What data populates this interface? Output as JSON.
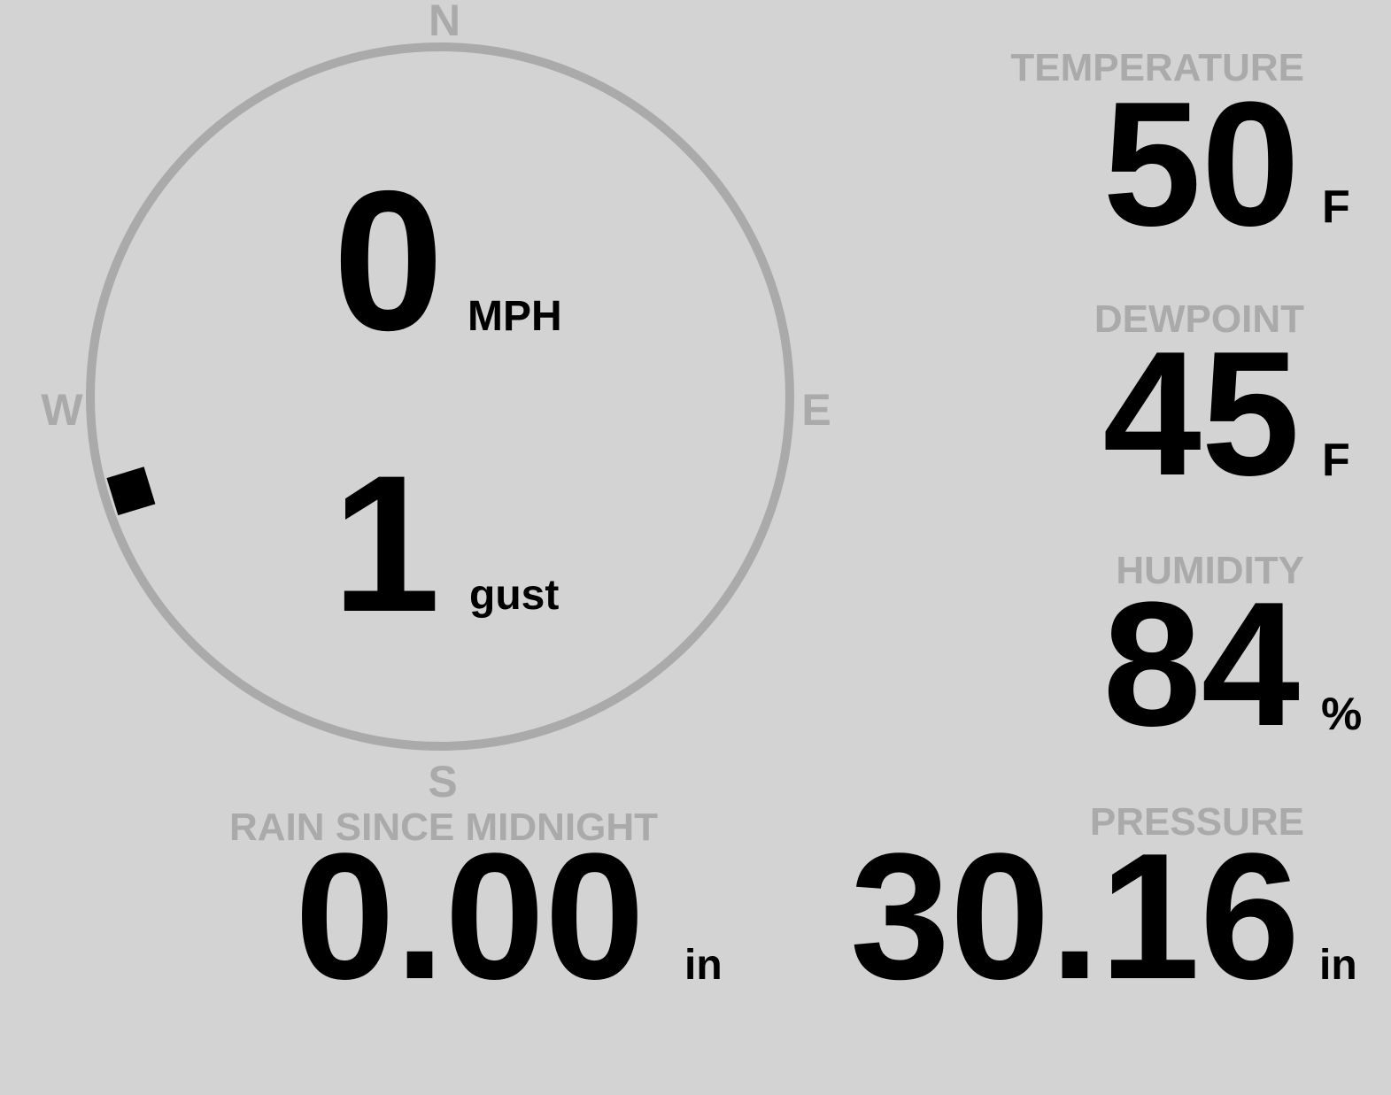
{
  "colors": {
    "background": "#d3d3d3",
    "label": "#aaaaaa",
    "value": "#000000",
    "compass_ring": "#aaaaaa",
    "wind_marker": "#000000"
  },
  "compass": {
    "n": "N",
    "e": "E",
    "s": "S",
    "w": "W",
    "wind_direction_deg": 253
  },
  "wind": {
    "speed": "0",
    "speed_unit": "MPH",
    "gust": "1",
    "gust_unit": "gust"
  },
  "temperature": {
    "label": "TEMPERATURE",
    "value": "50",
    "unit": "F"
  },
  "dewpoint": {
    "label": "DEWPOINT",
    "value": "45",
    "unit": "F"
  },
  "humidity": {
    "label": "HUMIDITY",
    "value": "84",
    "unit": "%"
  },
  "rain": {
    "label": "RAIN SINCE MIDNIGHT",
    "value": "0.00",
    "unit": "in"
  },
  "pressure": {
    "label": "PRESSURE",
    "value": "30.16",
    "unit": "in"
  }
}
